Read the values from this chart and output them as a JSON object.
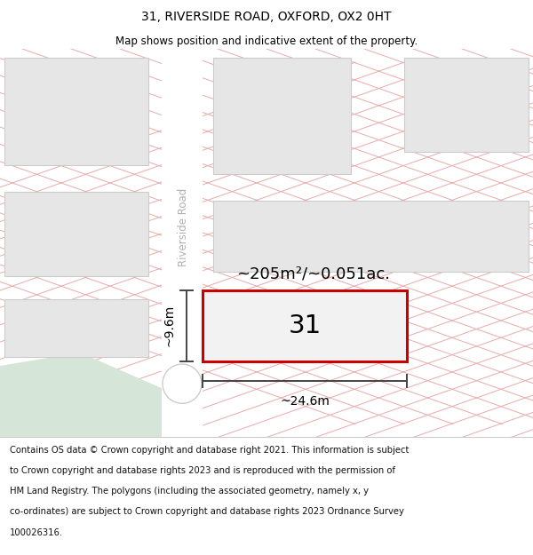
{
  "title": "31, RIVERSIDE ROAD, OXFORD, OX2 0HT",
  "subtitle": "Map shows position and indicative extent of the property.",
  "footer_lines": [
    "Contains OS data © Crown copyright and database right 2021. This information is subject",
    "to Crown copyright and database rights 2023 and is reproduced with the permission of",
    "HM Land Registry. The polygons (including the associated geometry, namely x, y",
    "co-ordinates) are subject to Crown copyright and database rights 2023 Ordnance Survey",
    "100026316."
  ],
  "map_bg": "#f7f7f5",
  "grid_line_color": "#e8aaaa",
  "building_fill": "#e6e6e6",
  "building_edge": "#cccccc",
  "road_fill": "#ffffff",
  "green_fill": "#d5e5d8",
  "highlight_fill": "#f2f2f2",
  "highlight_edge": "#cc0000",
  "road_label": "Riverside Road",
  "area_label": "~205m²/~0.051ac.",
  "house_number": "31",
  "width_label": "~24.6m",
  "height_label": "~9.6m",
  "dim_color": "#444444",
  "footer_bg": "#ffffff",
  "title_fontsize": 10,
  "subtitle_fontsize": 8.5,
  "footer_fontsize": 7.2
}
